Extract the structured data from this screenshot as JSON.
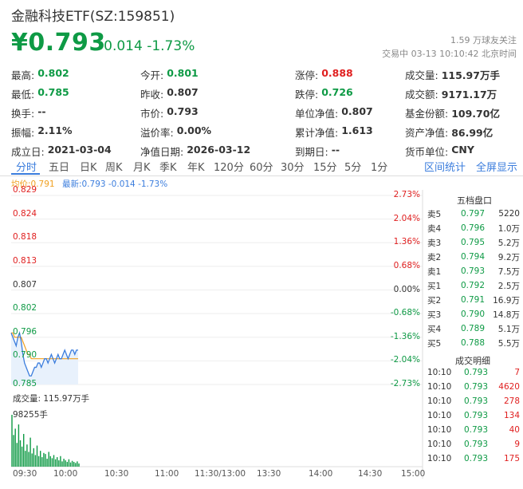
{
  "header": {
    "title": "金融科技ETF(SZ:159851)",
    "price": "¥0.793",
    "change": "-0.014 -1.73%",
    "follow": "1.59 万球友关注",
    "market_status": "交易中 03-13 10:10:42 北京时间"
  },
  "quote_grid": [
    [
      {
        "label": "最高:",
        "value": "0.802",
        "color": "#0e9a45"
      },
      {
        "label": "今开:",
        "value": "0.801",
        "color": "#0e9a45"
      },
      {
        "label": "涨停:",
        "value": "0.888",
        "color": "#e02020"
      },
      {
        "label": "成交量:",
        "value": "115.97万手",
        "color": "#333333"
      }
    ],
    [
      {
        "label": "最低:",
        "value": "0.785",
        "color": "#0e9a45"
      },
      {
        "label": "昨收:",
        "value": "0.807",
        "color": "#333333"
      },
      {
        "label": "跌停:",
        "value": "0.726",
        "color": "#0e9a45"
      },
      {
        "label": "成交额:",
        "value": "9171.17万",
        "color": "#333333"
      }
    ],
    [
      {
        "label": "换手:",
        "value": "--",
        "color": "#333333"
      },
      {
        "label": "市价:",
        "value": "0.793",
        "color": "#333333"
      },
      {
        "label": "单位净值:",
        "value": "0.807",
        "color": "#333333"
      },
      {
        "label": "基金份额:",
        "value": "109.70亿",
        "color": "#333333"
      }
    ],
    [
      {
        "label": "振幅:",
        "value": "2.11%",
        "color": "#333333"
      },
      {
        "label": "溢价率:",
        "value": "0.00%",
        "color": "#333333"
      },
      {
        "label": "累计净值:",
        "value": "1.613",
        "color": "#333333"
      },
      {
        "label": "资产净值:",
        "value": "86.99亿",
        "color": "#333333"
      }
    ],
    [
      {
        "label": "成立日:",
        "value": "2021-03-04",
        "color": "#333333"
      },
      {
        "label": "净值日期:",
        "value": "2026-03-12",
        "color": "#333333"
      },
      {
        "label": "到期日:",
        "value": "--",
        "color": "#333333"
      },
      {
        "label": "货币单位:",
        "value": "CNY",
        "color": "#333333"
      }
    ]
  ],
  "tabs": [
    "分时",
    "五日",
    "日K",
    "周K",
    "月K",
    "季K",
    "年K",
    "120分",
    "60分",
    "30分",
    "15分",
    "5分",
    "1分"
  ],
  "active_tab": "分时",
  "right_tabs": [
    "区间统计",
    "全屏显示"
  ],
  "legend": {
    "avg": "均价:0.791",
    "latest": "最新:0.793 -0.014 -1.73%"
  },
  "chart_data": {
    "type": "line",
    "y_price_ticks": [
      "0.829",
      "0.824",
      "0.818",
      "0.813",
      "0.807",
      "0.802",
      "0.796",
      "0.790",
      "0.785"
    ],
    "y_pct_ticks": [
      "2.73%",
      "2.04%",
      "1.36%",
      "0.68%",
      "0.00%",
      "-0.68%",
      "-1.36%",
      "-2.04%",
      "-2.73%"
    ],
    "x_ticks": [
      "09:30",
      "10:00",
      "10:30",
      "11:00",
      "11:30/13:00",
      "13:30",
      "14:00",
      "14:30",
      "15:00"
    ],
    "ylim": [
      0.785,
      0.829
    ],
    "prev_close": 0.807,
    "price": [
      0.797,
      0.796,
      0.795,
      0.794,
      0.796,
      0.797,
      0.795,
      0.792,
      0.79,
      0.789,
      0.788,
      0.787,
      0.787,
      0.788,
      0.789,
      0.789,
      0.79,
      0.79,
      0.789,
      0.79,
      0.791,
      0.791,
      0.79,
      0.791,
      0.792,
      0.791,
      0.79,
      0.791,
      0.792,
      0.791,
      0.791,
      0.792,
      0.793,
      0.792,
      0.791,
      0.792,
      0.793,
      0.793,
      0.792,
      0.793,
      0.793
    ],
    "avg": [
      0.797,
      0.797,
      0.796,
      0.796,
      0.796,
      0.796,
      0.796,
      0.795,
      0.794,
      0.793,
      0.792,
      0.792,
      0.791,
      0.791,
      0.791,
      0.791,
      0.791,
      0.791,
      0.791,
      0.791,
      0.791,
      0.791,
      0.791,
      0.791,
      0.791,
      0.791,
      0.791,
      0.791,
      0.791,
      0.791,
      0.791,
      0.791,
      0.791,
      0.791,
      0.791,
      0.791,
      0.791,
      0.791,
      0.791,
      0.791,
      0.791
    ],
    "volume_label": "成交量: 115.97万手",
    "volume_max_label": "98255手",
    "volume_max": 98255,
    "volume": [
      98255,
      60000,
      72000,
      45000,
      80000,
      50000,
      38000,
      62000,
      30000,
      42000,
      28000,
      55000,
      25000,
      35000,
      22000,
      40000,
      20000,
      30000,
      18000,
      26000,
      24000,
      15000,
      28000,
      20000,
      16000,
      22000,
      14000,
      18000,
      12000,
      20000,
      10000,
      15000,
      12000,
      9000,
      14000,
      8000,
      11000,
      9000,
      7000,
      10000,
      6000
    ]
  },
  "orderbook": {
    "title": "五档盘口",
    "rows": [
      {
        "name": "卖5",
        "price": "0.797",
        "vol": "5220"
      },
      {
        "name": "卖4",
        "price": "0.796",
        "vol": "1.0万"
      },
      {
        "name": "卖3",
        "price": "0.795",
        "vol": "5.2万"
      },
      {
        "name": "卖2",
        "price": "0.794",
        "vol": "9.2万"
      },
      {
        "name": "卖1",
        "price": "0.793",
        "vol": "7.5万"
      },
      {
        "name": "买1",
        "price": "0.792",
        "vol": "2.5万"
      },
      {
        "name": "买2",
        "price": "0.791",
        "vol": "16.9万"
      },
      {
        "name": "买3",
        "price": "0.790",
        "vol": "14.8万"
      },
      {
        "name": "买4",
        "price": "0.789",
        "vol": "5.1万"
      },
      {
        "name": "买5",
        "price": "0.788",
        "vol": "5.5万"
      }
    ]
  },
  "trades": {
    "title": "成交明细",
    "rows": [
      {
        "time": "10:10",
        "price": "0.793",
        "vol": "7",
        "color": "#e02020"
      },
      {
        "time": "10:10",
        "price": "0.793",
        "vol": "4620",
        "color": "#e02020"
      },
      {
        "time": "10:10",
        "price": "0.793",
        "vol": "278",
        "color": "#e02020"
      },
      {
        "time": "10:10",
        "price": "0.793",
        "vol": "134",
        "color": "#e02020"
      },
      {
        "time": "10:10",
        "price": "0.793",
        "vol": "40",
        "color": "#e02020"
      },
      {
        "time": "10:10",
        "price": "0.793",
        "vol": "9",
        "color": "#e02020"
      },
      {
        "time": "10:10",
        "price": "0.793",
        "vol": "175",
        "color": "#e02020"
      }
    ]
  }
}
